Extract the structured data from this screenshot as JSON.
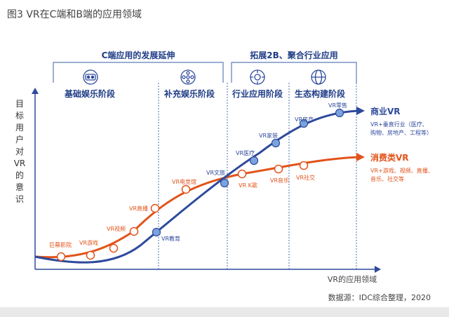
{
  "title": "图3 VR在C端和B端的应用领域",
  "source": "数据源：IDC综合整理，2020",
  "axis": {
    "y_label": "目标用户对VR的意识",
    "x_label": "VR的应用领域"
  },
  "groups": [
    {
      "label": "C端应用的发展延伸"
    },
    {
      "label": "拓展2B、聚合行业应用"
    }
  ],
  "stages": [
    {
      "label": "基础娱乐阶段",
      "icon": "vr-headset-icon"
    },
    {
      "label": "补充娱乐阶段",
      "icon": "film-reel-icon"
    },
    {
      "label": "行业应用阶段",
      "icon": "gear-icon"
    },
    {
      "label": "生态构建阶段",
      "icon": "network-globe-icon"
    }
  ],
  "series": [
    {
      "name": "商业VR",
      "color": "#2e4a9c",
      "desc": [
        "VR+垂直行业（医疗、",
        "购物、房地产、工程等）"
      ],
      "points": [
        "VR教育",
        "VR文旅",
        "VR医疗",
        "VR家装",
        "VR房产",
        "VR零售"
      ]
    },
    {
      "name": "消费类VR",
      "color": "#e2531a",
      "desc": [
        "VR+游戏、视频、直播、",
        "音乐、社交等"
      ],
      "points": [
        "巨幕影院",
        "VR游戏",
        "VR视频",
        "VR直播",
        "VR电竞馆",
        "VR K歌",
        "VR音乐",
        "VR社交"
      ]
    }
  ]
}
